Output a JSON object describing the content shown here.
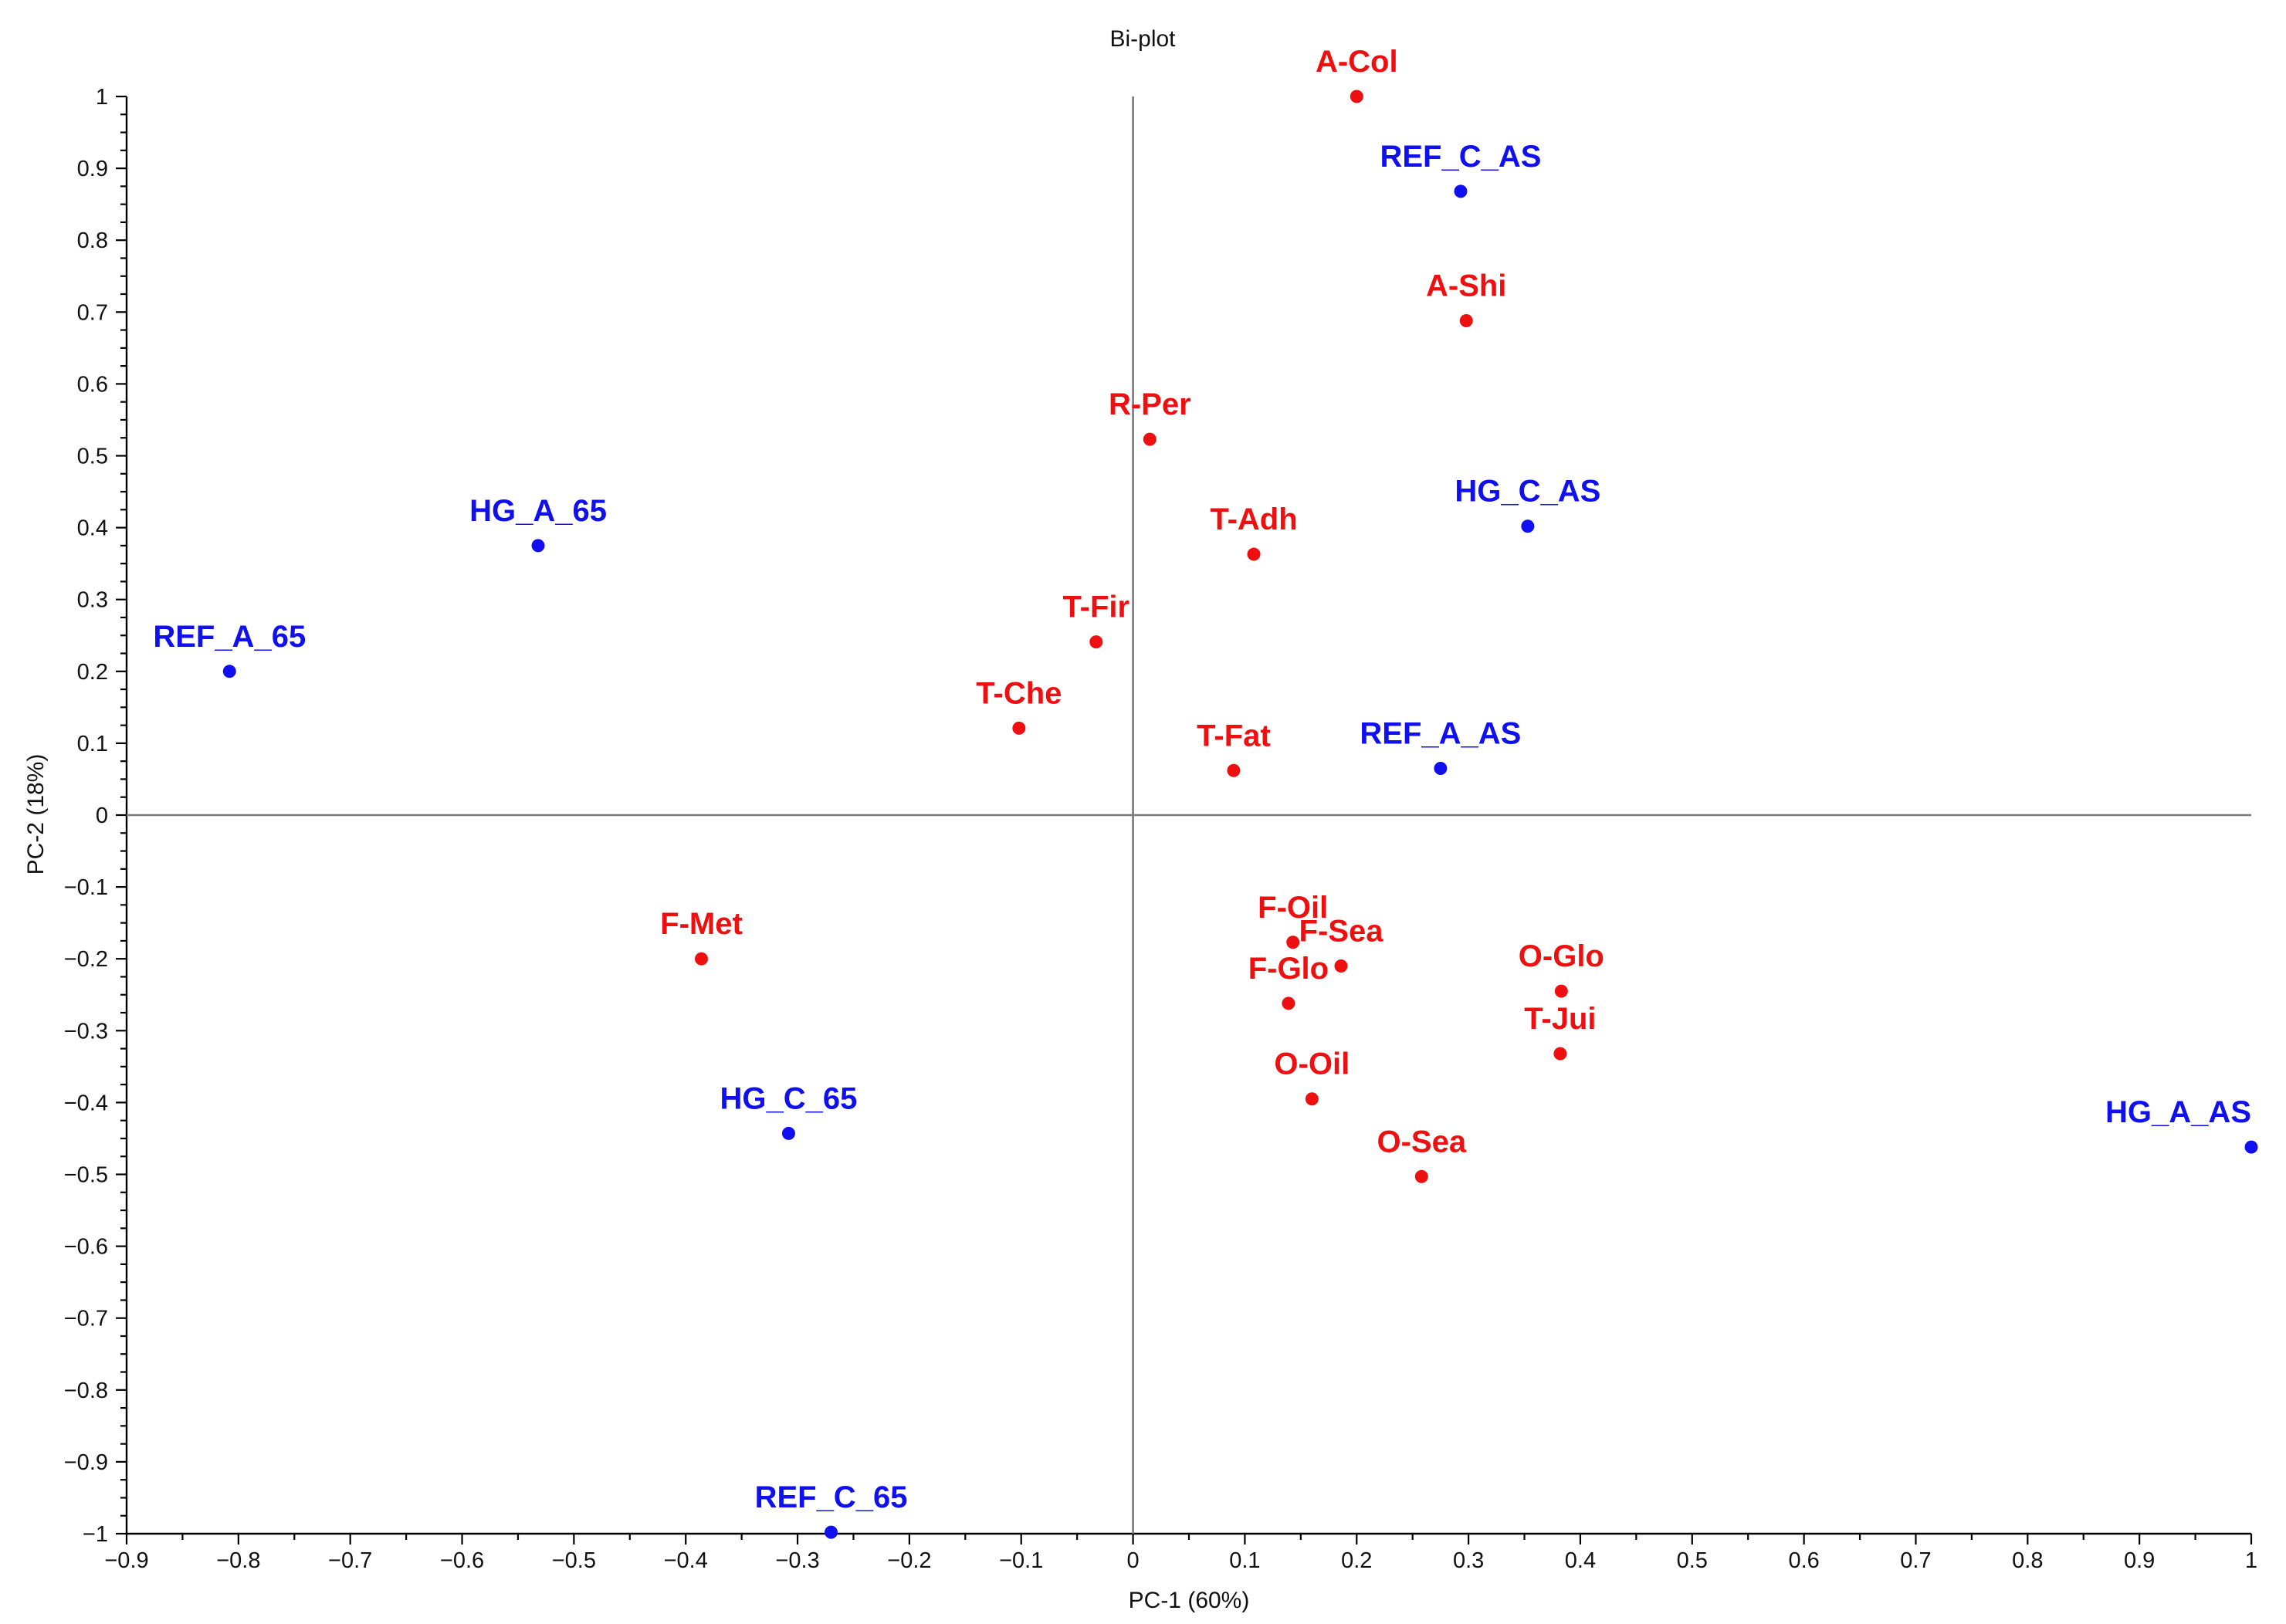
{
  "chart_data": {
    "type": "scatter",
    "title": "Bi-plot",
    "xlabel": "PC-1 (60%)",
    "ylabel": "PC-2 (18%)",
    "xlim": [
      -0.9,
      1
    ],
    "ylim": [
      -1,
      1
    ],
    "x_ticks": [
      -0.9,
      -0.8,
      -0.7,
      -0.6,
      -0.5,
      -0.4,
      -0.3,
      -0.2,
      -0.1,
      0,
      0.1,
      0.2,
      0.3,
      0.4,
      0.5,
      0.6,
      0.7,
      0.8,
      0.9,
      1
    ],
    "x_tick_labels": [
      "−0.9",
      "−0.8",
      "−0.7",
      "−0.6",
      "−0.5",
      "−0.4",
      "−0.3",
      "−0.2",
      "−0.1",
      "0",
      "0.1",
      "0.2",
      "0.3",
      "0.4",
      "0.5",
      "0.6",
      "0.7",
      "0.8",
      "0.9",
      "1"
    ],
    "y_ticks": [
      1,
      0.9,
      0.8,
      0.7,
      0.6,
      0.5,
      0.4,
      0.3,
      0.2,
      0.1,
      0,
      -0.1,
      -0.2,
      -0.3,
      -0.4,
      -0.5,
      -0.6,
      -0.7,
      -0.8,
      -0.9,
      -1
    ],
    "y_tick_labels": [
      "1",
      "0.9",
      "0.8",
      "0.7",
      "0.6",
      "0.5",
      "0.4",
      "0.3",
      "0.2",
      "0.1",
      "0",
      "−0.1",
      "−0.2",
      "−0.3",
      "−0.4",
      "−0.5",
      "−0.6",
      "−0.7",
      "−0.8",
      "−0.9",
      "−1"
    ],
    "grid": false,
    "zero_lines": true,
    "series": [
      {
        "name": "Samples (scores)",
        "color": "#1010ee",
        "points": [
          {
            "label": "REF_C_AS",
            "x": 0.293,
            "y": 0.868
          },
          {
            "label": "HG_C_AS",
            "x": 0.353,
            "y": 0.402
          },
          {
            "label": "HG_A_65",
            "x": -0.532,
            "y": 0.375
          },
          {
            "label": "REF_A_65",
            "x": -0.808,
            "y": 0.2
          },
          {
            "label": "REF_A_AS",
            "x": 0.275,
            "y": 0.065
          },
          {
            "label": "HG_C_65",
            "x": -0.308,
            "y": -0.443
          },
          {
            "label": "HG_A_AS",
            "x": 1.0,
            "y": -0.462
          },
          {
            "label": "REF_C_65",
            "x": -0.27,
            "y": -0.998
          }
        ]
      },
      {
        "name": "Attributes (loadings)",
        "color": "#ee1010",
        "points": [
          {
            "label": "A-Col",
            "x": 0.2,
            "y": 1.0
          },
          {
            "label": "A-Shi",
            "x": 0.298,
            "y": 0.688
          },
          {
            "label": "R-Per",
            "x": 0.015,
            "y": 0.523
          },
          {
            "label": "T-Adh",
            "x": 0.108,
            "y": 0.363
          },
          {
            "label": "T-Fir",
            "x": -0.033,
            "y": 0.241
          },
          {
            "label": "T-Che",
            "x": -0.102,
            "y": 0.121
          },
          {
            "label": "T-Fat",
            "x": 0.09,
            "y": 0.062
          },
          {
            "label": "F-Met",
            "x": -0.386,
            "y": -0.2
          },
          {
            "label": "F-Oil",
            "x": 0.143,
            "y": -0.177
          },
          {
            "label": "F-Sea",
            "x": 0.186,
            "y": -0.21
          },
          {
            "label": "F-Glo",
            "x": 0.139,
            "y": -0.262
          },
          {
            "label": "O-Glo",
            "x": 0.383,
            "y": -0.245
          },
          {
            "label": "T-Jui",
            "x": 0.382,
            "y": -0.332
          },
          {
            "label": "O-Oil",
            "x": 0.16,
            "y": -0.395
          },
          {
            "label": "O-Sea",
            "x": 0.258,
            "y": -0.503
          }
        ]
      }
    ]
  }
}
